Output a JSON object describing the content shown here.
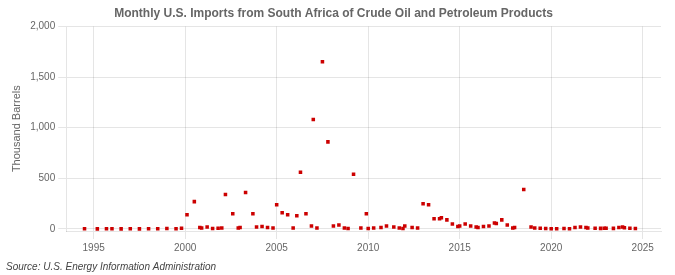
{
  "chart_data": {
    "type": "scatter",
    "title": "Monthly U.S. Imports from South Africa of Crude Oil and Petroleum Products",
    "y_label": "Thousand Barrels",
    "annotations": [
      "Source: U.S. Energy Information Administration"
    ],
    "color": "#cc0000",
    "marker": "square",
    "grid": true,
    "xlim": [
      1993.5,
      2026
    ],
    "ylim": [
      -20,
      2000
    ],
    "xticks": [
      1995,
      2000,
      2005,
      2010,
      2015,
      2020,
      2025
    ],
    "yticks": [
      0,
      500,
      {
        "value": 1000,
        "label": "1,000"
      },
      {
        "value": 1500,
        "label": "1,500"
      },
      {
        "value": 2000,
        "label": "2,000"
      }
    ],
    "x": [
      1994.5,
      1995.2,
      1995.7,
      1996.0,
      1996.5,
      1997.0,
      1997.5,
      1998.0,
      1998.5,
      1999.0,
      1999.5,
      1999.8,
      2000.1,
      2000.5,
      2000.8,
      2000.9,
      2001.2,
      2001.5,
      2001.8,
      2002.0,
      2002.2,
      2002.6,
      2002.9,
      2003.0,
      2003.3,
      2003.7,
      2003.9,
      2004.2,
      2004.5,
      2004.8,
      2005.0,
      2005.3,
      2005.6,
      2005.9,
      2006.1,
      2006.3,
      2006.6,
      2006.9,
      2007.0,
      2007.2,
      2007.5,
      2007.8,
      2008.1,
      2008.4,
      2008.7,
      2008.9,
      2009.2,
      2009.6,
      2009.9,
      2010.0,
      2010.3,
      2010.7,
      2011.0,
      2011.4,
      2011.7,
      2011.9,
      2012.0,
      2012.4,
      2012.7,
      2013.0,
      2013.3,
      2013.6,
      2013.9,
      2014.0,
      2014.3,
      2014.6,
      2014.9,
      2015.0,
      2015.3,
      2015.6,
      2015.9,
      2016.0,
      2016.3,
      2016.6,
      2016.9,
      2017.0,
      2017.3,
      2017.6,
      2017.9,
      2018.0,
      2018.5,
      2018.9,
      2019.1,
      2019.4,
      2019.7,
      2020.0,
      2020.3,
      2020.7,
      2021.0,
      2021.3,
      2021.6,
      2021.9,
      2022.0,
      2022.4,
      2022.7,
      2022.9,
      2023.0,
      2023.4,
      2023.7,
      2023.9,
      2024.0,
      2024.3,
      2024.6
    ],
    "values": [
      2,
      1,
      3,
      2,
      1,
      2,
      1,
      3,
      2,
      5,
      3,
      8,
      140,
      270,
      15,
      10,
      20,
      5,
      8,
      10,
      340,
      150,
      10,
      15,
      360,
      150,
      20,
      25,
      15,
      10,
      240,
      160,
      140,
      10,
      130,
      560,
      150,
      30,
      1080,
      10,
      1650,
      860,
      30,
      40,
      10,
      5,
      540,
      10,
      150,
      5,
      10,
      15,
      30,
      20,
      10,
      5,
      30,
      15,
      10,
      250,
      240,
      100,
      100,
      110,
      90,
      50,
      25,
      30,
      50,
      30,
      20,
      15,
      25,
      30,
      60,
      55,
      90,
      40,
      10,
      15,
      390,
      20,
      10,
      8,
      5,
      3,
      3,
      5,
      3,
      15,
      20,
      15,
      10,
      8,
      6,
      8,
      8,
      6,
      15,
      20,
      12,
      8,
      5
    ]
  }
}
